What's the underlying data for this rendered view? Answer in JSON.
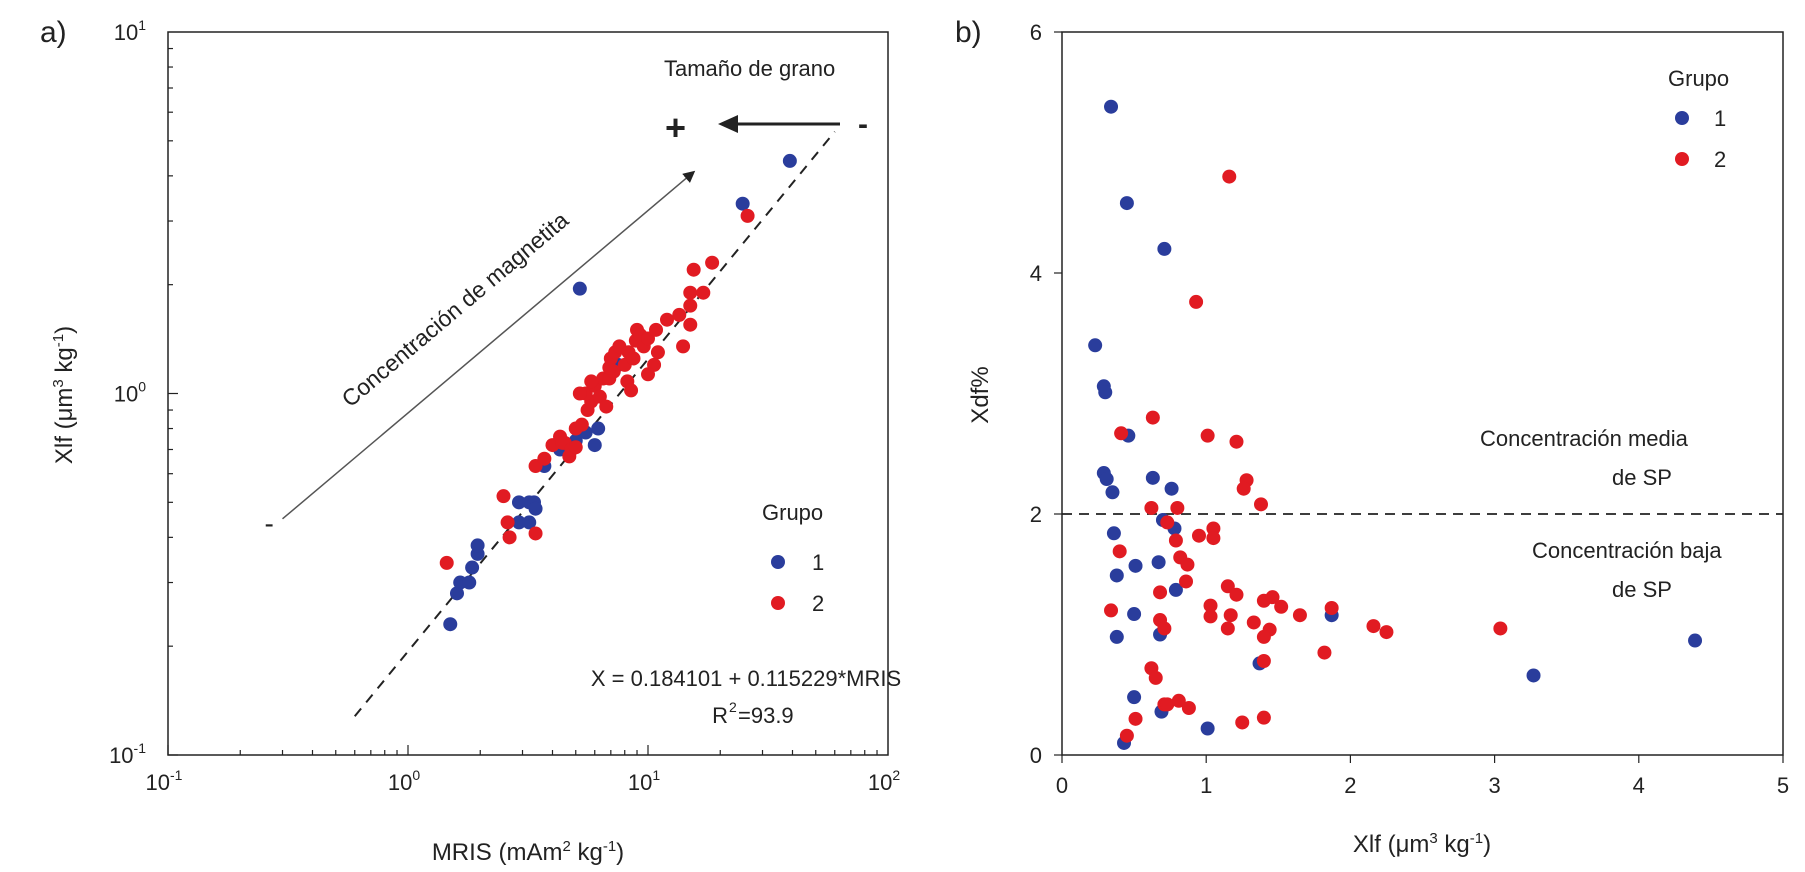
{
  "colors": {
    "group1": "#2a3d9c",
    "group2": "#e11b22",
    "axis": "#222222",
    "text": "#222222"
  },
  "chart_data": [
    {
      "type": "scatter",
      "panel_label": "a)",
      "xscale": "log",
      "yscale": "log",
      "xlim": [
        0.1,
        100
      ],
      "ylim": [
        0.1,
        10
      ],
      "xlabel_main": "MRIS (mAm",
      "xlabel_sup": "2",
      "xlabel_tail": " kg",
      "xlabel_sup2": "-1",
      "xlabel_end": ")",
      "ylabel_main": "Xlf (",
      "ylabel_mu": "μm",
      "ylabel_sup": "3",
      "ylabel_tail": " kg",
      "ylabel_sup2": "-1",
      "ylabel_end": ")",
      "xticks": [
        {
          "value": 0.1,
          "base": "10",
          "exp": "-1"
        },
        {
          "value": 1,
          "base": "10",
          "exp": "0"
        },
        {
          "value": 10,
          "base": "10",
          "exp": "1"
        },
        {
          "value": 100,
          "base": "10",
          "exp": "2"
        }
      ],
      "yticks": [
        {
          "value": 0.1,
          "base": "10",
          "exp": "-1"
        },
        {
          "value": 1,
          "base": "10",
          "exp": "0"
        },
        {
          "value": 10,
          "base": "10",
          "exp": "1"
        }
      ],
      "legend": {
        "title": "Grupo",
        "entries": [
          "1",
          "2"
        ]
      },
      "annotations": {
        "arrow_label": "Concentración de magnetita",
        "arrow_minus": "-",
        "grain_size_label": "Tamaño de grano",
        "grain_plus": "+",
        "grain_minus": "-",
        "equation": "X = 0.184101 + 0.115229*MRIS",
        "r2_prefix": "R",
        "r2_sup": "2",
        "r2_value": "=93.9"
      },
      "fit_line": {
        "x": [
          0.6,
          60
        ],
        "y": [
          0.128,
          5.3
        ]
      },
      "arrow_line": {
        "x": [
          0.3,
          15.5
        ],
        "y": [
          0.45,
          4.1
        ]
      },
      "series": [
        {
          "name": "1",
          "points": [
            [
              1.5,
              0.23
            ],
            [
              1.6,
              0.28
            ],
            [
              1.65,
              0.3
            ],
            [
              1.8,
              0.3
            ],
            [
              1.85,
              0.33
            ],
            [
              1.95,
              0.36
            ],
            [
              1.95,
              0.38
            ],
            [
              2.9,
              0.44
            ],
            [
              2.9,
              0.5
            ],
            [
              3.2,
              0.5
            ],
            [
              3.35,
              0.5
            ],
            [
              3.4,
              0.48
            ],
            [
              3.2,
              0.44
            ],
            [
              3.7,
              0.63
            ],
            [
              4.1,
              0.72
            ],
            [
              4.3,
              0.7
            ],
            [
              5.0,
              0.74
            ],
            [
              5.5,
              0.78
            ],
            [
              6.0,
              0.72
            ],
            [
              6.2,
              0.8
            ],
            [
              5.2,
              1.95
            ],
            [
              7.5,
              1.2
            ],
            [
              24.8,
              3.35
            ],
            [
              39.0,
              4.4
            ]
          ]
        },
        {
          "name": "2",
          "points": [
            [
              1.45,
              0.34
            ],
            [
              2.5,
              0.52
            ],
            [
              2.6,
              0.44
            ],
            [
              2.65,
              0.4
            ],
            [
              3.4,
              0.41
            ],
            [
              3.4,
              0.63
            ],
            [
              3.7,
              0.66
            ],
            [
              4.0,
              0.72
            ],
            [
              4.3,
              0.76
            ],
            [
              4.4,
              0.73
            ],
            [
              4.5,
              0.73
            ],
            [
              4.7,
              0.67
            ],
            [
              4.8,
              0.7
            ],
            [
              5.0,
              0.71
            ],
            [
              5.0,
              0.8
            ],
            [
              5.3,
              0.82
            ],
            [
              5.6,
              0.9
            ],
            [
              5.8,
              0.95
            ],
            [
              5.5,
              1.0
            ],
            [
              6.0,
              1.05
            ],
            [
              6.3,
              0.98
            ],
            [
              6.7,
              0.92
            ],
            [
              6.5,
              1.1
            ],
            [
              6.9,
              1.1
            ],
            [
              7.0,
              1.25
            ],
            [
              7.3,
              1.3
            ],
            [
              7.6,
              1.35
            ],
            [
              8.0,
              1.2
            ],
            [
              8.3,
              1.3
            ],
            [
              8.7,
              1.25
            ],
            [
              8.9,
              1.4
            ],
            [
              9.0,
              1.5
            ],
            [
              9.3,
              1.45
            ],
            [
              9.6,
              1.35
            ],
            [
              10.0,
              1.42
            ],
            [
              10.8,
              1.5
            ],
            [
              11.0,
              1.3
            ],
            [
              10.6,
              1.2
            ],
            [
              10.0,
              1.13
            ],
            [
              8.2,
              1.08
            ],
            [
              8.5,
              1.02
            ],
            [
              7.2,
              1.15
            ],
            [
              6.9,
              1.18
            ],
            [
              5.8,
              1.08
            ],
            [
              5.2,
              1.0
            ],
            [
              12.0,
              1.6
            ],
            [
              13.5,
              1.65
            ],
            [
              14.0,
              1.35
            ],
            [
              15.0,
              1.55
            ],
            [
              15.0,
              1.75
            ],
            [
              15.0,
              1.9
            ],
            [
              15.5,
              2.2
            ],
            [
              17.0,
              1.9
            ],
            [
              18.5,
              2.3
            ],
            [
              26.0,
              3.1
            ]
          ]
        }
      ]
    },
    {
      "type": "scatter",
      "panel_label": "b)",
      "xscale": "linear",
      "yscale": "linear",
      "xlim": [
        0,
        5
      ],
      "ylim": [
        0,
        6
      ],
      "xlabel_main": "Xlf (",
      "xlabel_mu": "μm",
      "xlabel_sup": "3",
      "xlabel_tail": " kg",
      "xlabel_sup2": "-1",
      "xlabel_end": ")",
      "ylabel": "Xdf%",
      "xticks": [
        "0",
        "1",
        "2",
        "3",
        "4",
        "5"
      ],
      "xtick_values": [
        0,
        1,
        2,
        3,
        4,
        5
      ],
      "yticks": [
        "0",
        "2",
        "4",
        "6"
      ],
      "ytick_values": [
        0,
        2,
        4,
        6
      ],
      "legend": {
        "title": "Grupo",
        "entries": [
          "1",
          "2"
        ]
      },
      "threshold_y": 2,
      "annotations": {
        "upper_line1": "Concentración media",
        "upper_line2": "de SP",
        "lower_line1": "Concentración baja",
        "lower_line2": "de SP"
      },
      "series": [
        {
          "name": "1",
          "points": [
            [
              0.34,
              5.38
            ],
            [
              0.45,
              4.58
            ],
            [
              0.71,
              4.2
            ],
            [
              0.23,
              3.4
            ],
            [
              0.29,
              3.06
            ],
            [
              0.3,
              3.01
            ],
            [
              0.46,
              2.65
            ],
            [
              0.29,
              2.34
            ],
            [
              0.31,
              2.29
            ],
            [
              0.35,
              2.18
            ],
            [
              0.63,
              2.3
            ],
            [
              0.76,
              2.21
            ],
            [
              0.78,
              1.88
            ],
            [
              0.7,
              1.95
            ],
            [
              0.36,
              1.84
            ],
            [
              0.51,
              1.57
            ],
            [
              0.38,
              1.49
            ],
            [
              0.67,
              1.6
            ],
            [
              0.79,
              1.37
            ],
            [
              0.5,
              1.17
            ],
            [
              0.38,
              0.98
            ],
            [
              0.68,
              1.0
            ],
            [
              0.5,
              0.48
            ],
            [
              0.69,
              0.36
            ],
            [
              0.43,
              0.1
            ],
            [
              1.01,
              0.22
            ],
            [
              1.37,
              0.76
            ],
            [
              1.87,
              1.16
            ],
            [
              3.27,
              0.66
            ],
            [
              4.39,
              0.95
            ]
          ]
        },
        {
          "name": "2",
          "points": [
            [
              1.16,
              4.8
            ],
            [
              0.93,
              3.76
            ],
            [
              0.63,
              2.8
            ],
            [
              0.41,
              2.67
            ],
            [
              1.01,
              2.65
            ],
            [
              1.21,
              2.6
            ],
            [
              1.28,
              2.28
            ],
            [
              1.26,
              2.21
            ],
            [
              1.38,
              2.08
            ],
            [
              0.62,
              2.05
            ],
            [
              0.8,
              2.05
            ],
            [
              0.73,
              1.93
            ],
            [
              0.95,
              1.82
            ],
            [
              1.05,
              1.88
            ],
            [
              1.05,
              1.8
            ],
            [
              0.79,
              1.78
            ],
            [
              0.4,
              1.69
            ],
            [
              0.82,
              1.64
            ],
            [
              0.87,
              1.58
            ],
            [
              0.86,
              1.44
            ],
            [
              0.68,
              1.35
            ],
            [
              1.15,
              1.4
            ],
            [
              1.21,
              1.33
            ],
            [
              1.4,
              1.28
            ],
            [
              1.46,
              1.31
            ],
            [
              1.52,
              1.23
            ],
            [
              1.03,
              1.24
            ],
            [
              0.34,
              1.2
            ],
            [
              1.03,
              1.15
            ],
            [
              1.17,
              1.16
            ],
            [
              1.33,
              1.1
            ],
            [
              1.44,
              1.04
            ],
            [
              1.4,
              0.98
            ],
            [
              1.65,
              1.16
            ],
            [
              1.87,
              1.22
            ],
            [
              2.16,
              1.07
            ],
            [
              2.25,
              1.02
            ],
            [
              3.04,
              1.05
            ],
            [
              1.15,
              1.05
            ],
            [
              0.68,
              1.12
            ],
            [
              0.71,
              1.05
            ],
            [
              1.82,
              0.85
            ],
            [
              1.4,
              0.78
            ],
            [
              0.62,
              0.72
            ],
            [
              0.65,
              0.64
            ],
            [
              0.71,
              0.42
            ],
            [
              0.73,
              0.42
            ],
            [
              0.81,
              0.45
            ],
            [
              0.88,
              0.39
            ],
            [
              1.4,
              0.31
            ],
            [
              1.25,
              0.27
            ],
            [
              0.51,
              0.3
            ],
            [
              0.45,
              0.16
            ]
          ]
        }
      ]
    }
  ]
}
